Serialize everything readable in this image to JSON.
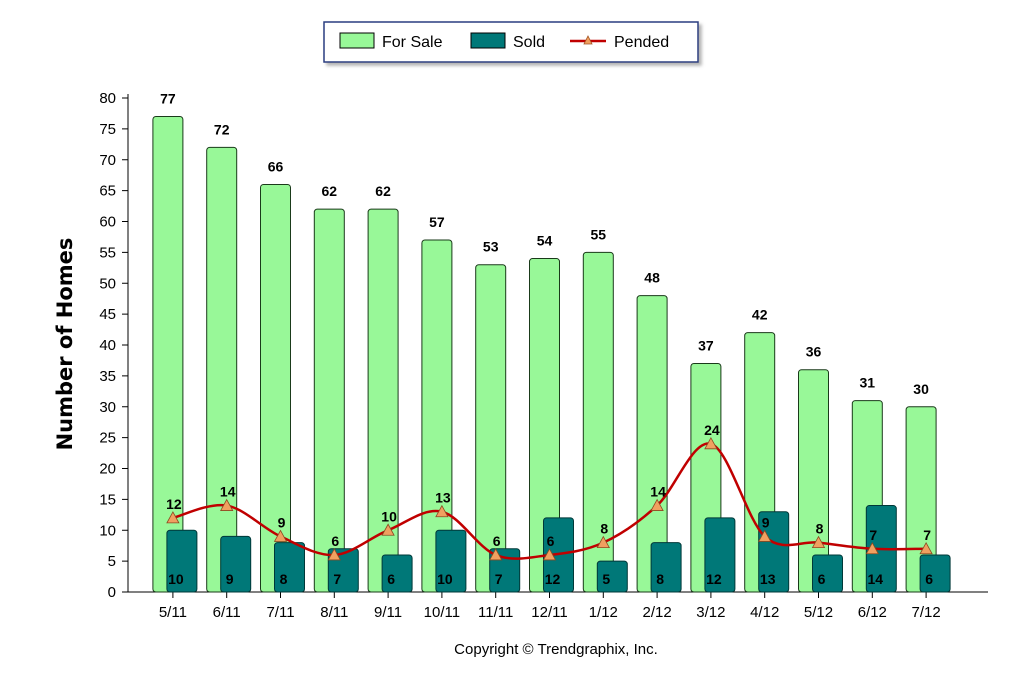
{
  "chart_data": {
    "type": "bar",
    "categories": [
      "5/11",
      "6/11",
      "7/11",
      "8/11",
      "9/11",
      "10/11",
      "11/11",
      "12/11",
      "1/12",
      "2/12",
      "3/12",
      "4/12",
      "5/12",
      "6/12",
      "7/12"
    ],
    "series": [
      {
        "name": "For Sale",
        "type": "bar",
        "color": "#98f898",
        "values": [
          77,
          72,
          66,
          62,
          62,
          57,
          53,
          54,
          55,
          48,
          37,
          42,
          36,
          31,
          30
        ]
      },
      {
        "name": "Sold",
        "type": "bar",
        "color": "#007878",
        "values": [
          10,
          9,
          8,
          7,
          6,
          10,
          7,
          12,
          5,
          8,
          12,
          13,
          6,
          14,
          6
        ]
      },
      {
        "name": "Pended",
        "type": "line",
        "color": "#c00000",
        "marker_color": "#f0a060",
        "values": [
          12,
          14,
          9,
          6,
          10,
          13,
          6,
          6,
          8,
          14,
          24,
          9,
          8,
          7,
          7
        ]
      }
    ],
    "ylabel": "Number of Homes",
    "ylim": [
      0,
      80
    ],
    "yticks": [
      0,
      5,
      10,
      15,
      20,
      25,
      30,
      35,
      40,
      45,
      50,
      55,
      60,
      65,
      70,
      75,
      80
    ],
    "legend_position": "top-center",
    "grid": false
  },
  "legend": {
    "for_sale": "For Sale",
    "sold": "Sold",
    "pended": "Pended"
  },
  "copyright": "Copyright © Trendgraphix, Inc."
}
